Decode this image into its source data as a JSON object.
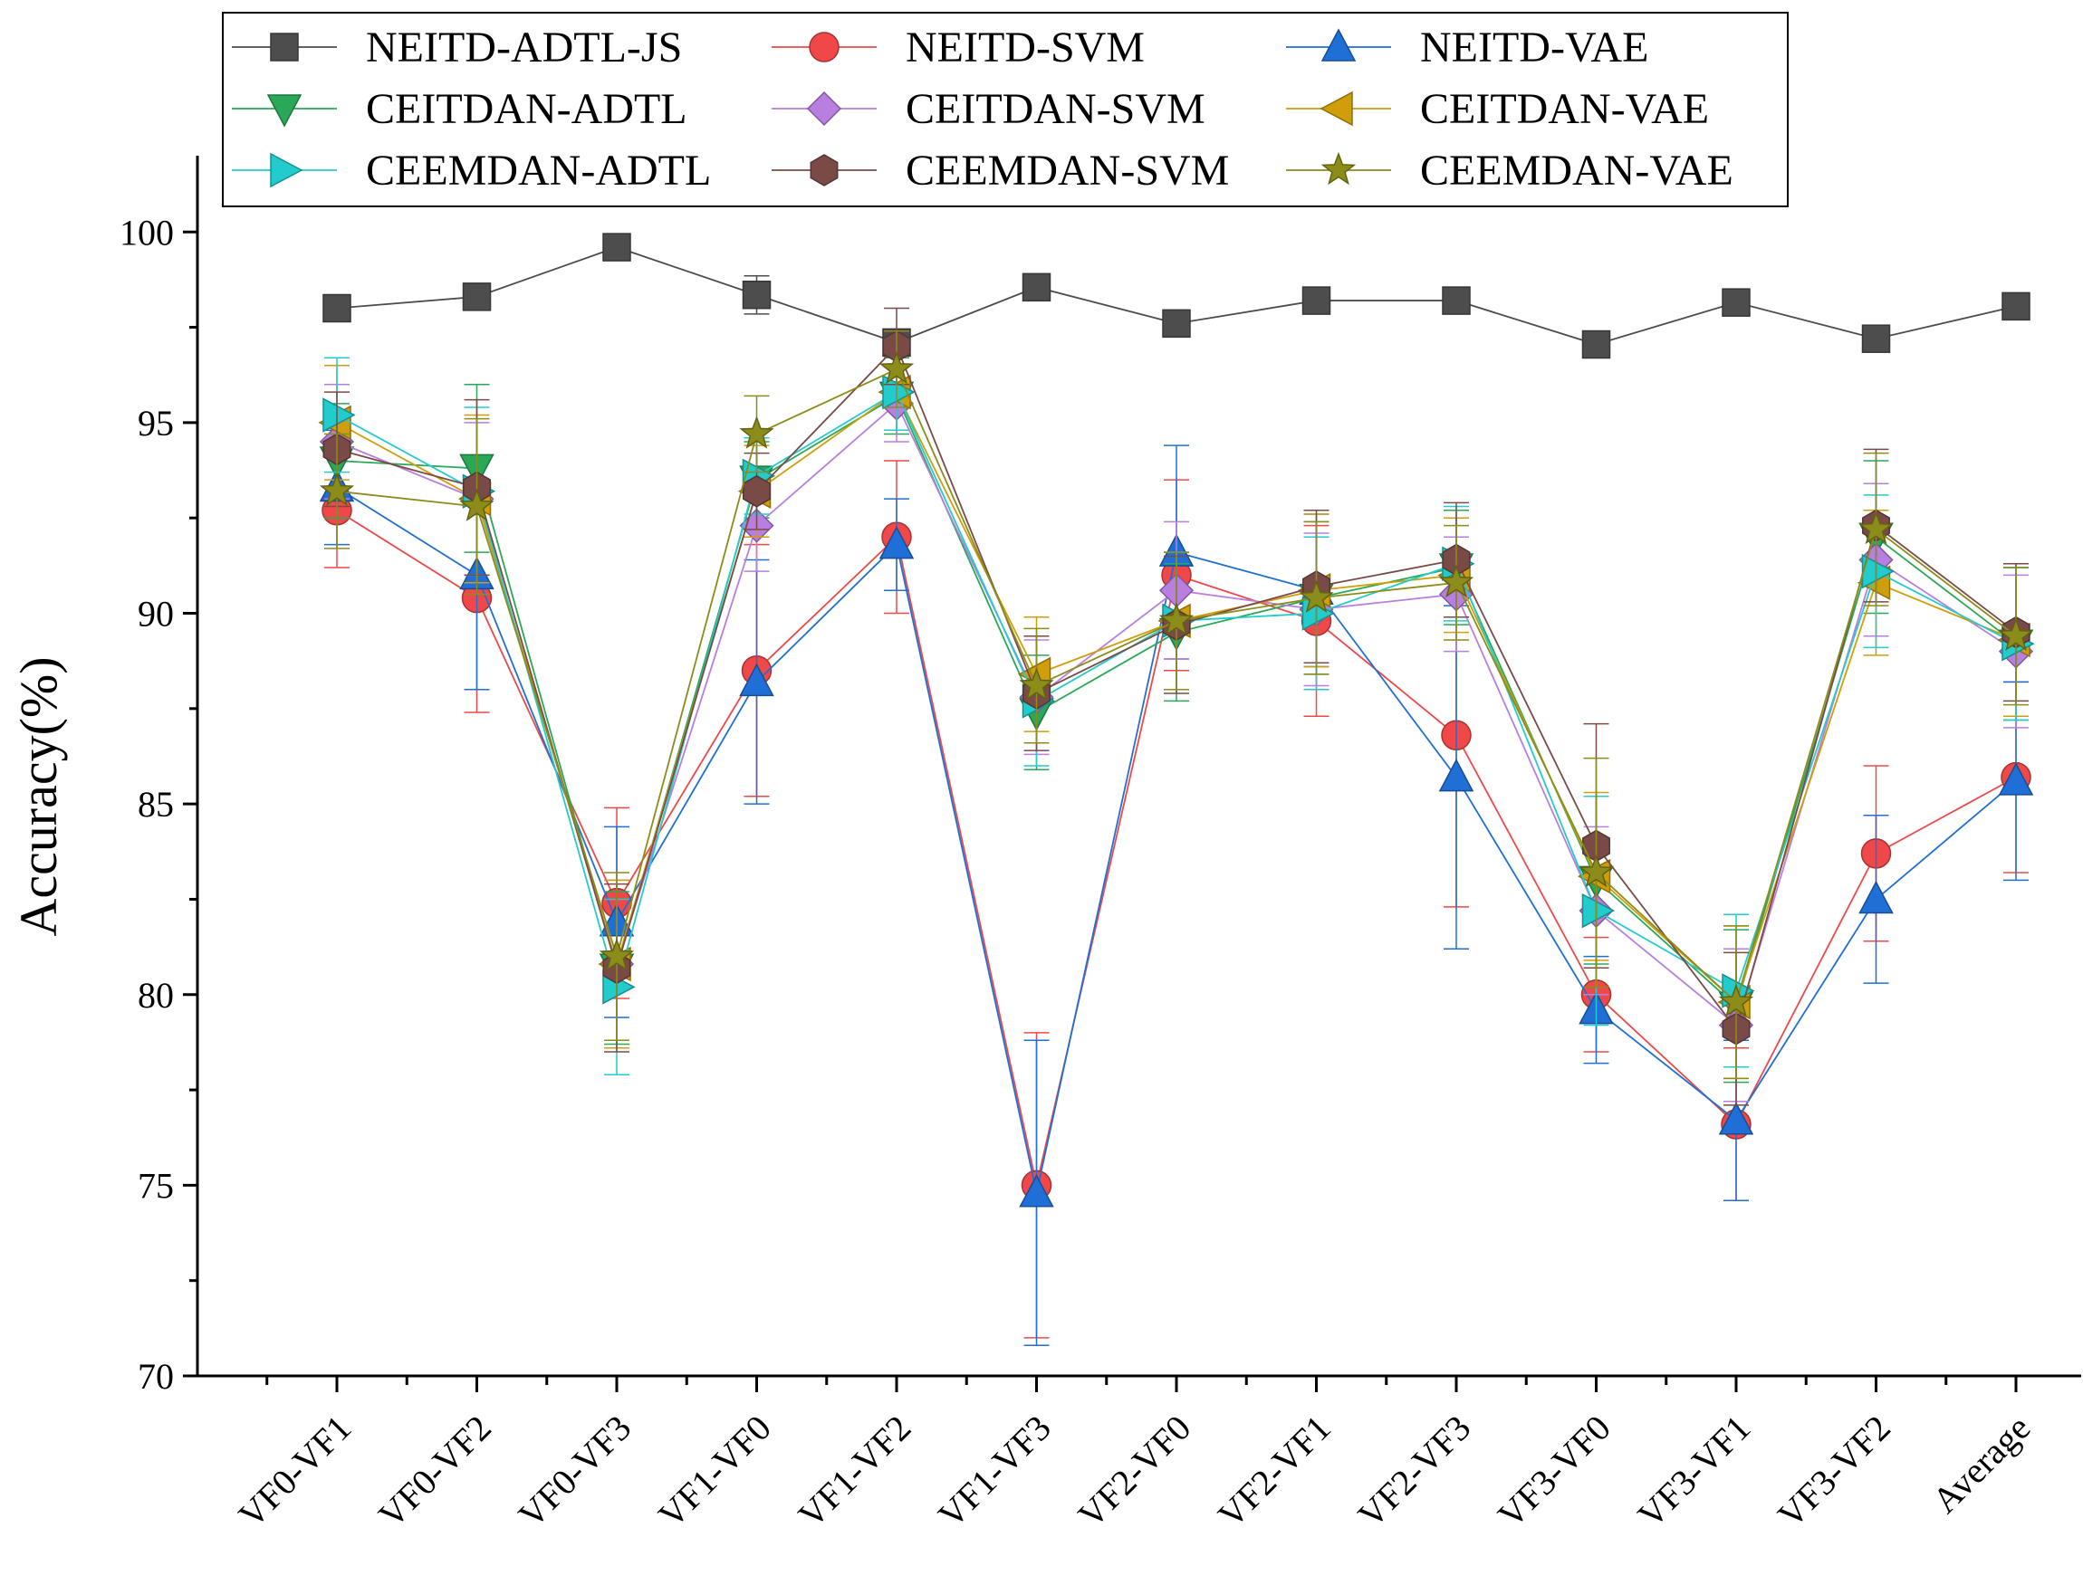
{
  "chart_data": {
    "type": "line",
    "title": "",
    "xlabel": "",
    "ylabel": "Accuracy(%)",
    "ylim": [
      70,
      102
    ],
    "yticks": [
      70,
      75,
      80,
      85,
      90,
      95,
      100
    ],
    "error_bars": true,
    "legend_position": "top",
    "categories": [
      "VF0-VF1",
      "VF0-VF2",
      "VF0-VF3",
      "VF1-VF0",
      "VF1-VF2",
      "VF1-VF3",
      "VF2-VF0",
      "VF2-VF1",
      "VF2-VF3",
      "VF3-VF0",
      "VF3-VF1",
      "VF3-VF2",
      "Average"
    ],
    "series": [
      {
        "name": "NEITD-ADTL-JS",
        "color": "#4d4d4d",
        "marker": "square",
        "values": [
          98.0,
          98.3,
          99.6,
          98.35,
          97.1,
          98.55,
          97.6,
          98.2,
          98.2,
          97.05,
          98.15,
          97.2,
          98.05
        ],
        "errors": [
          0.15,
          0.15,
          0.15,
          0.5,
          0.3,
          0.3,
          0.15,
          0.15,
          0.15,
          0.15,
          0.3,
          0.3,
          0.15
        ]
      },
      {
        "name": "NEITD-SVM",
        "color": "#f04848",
        "marker": "circle",
        "values": [
          92.7,
          90.4,
          82.4,
          88.5,
          92.0,
          75.0,
          91.0,
          89.8,
          86.8,
          80.0,
          76.6,
          83.7,
          85.7
        ],
        "errors": [
          1.5,
          3.0,
          2.5,
          3.3,
          2.0,
          4.0,
          2.5,
          2.5,
          4.5,
          1.5,
          2.0,
          2.3,
          2.5
        ]
      },
      {
        "name": "NEITD-VAE",
        "color": "#1f6fd6",
        "marker": "triangle-up",
        "values": [
          93.3,
          91.0,
          81.9,
          88.2,
          91.8,
          74.8,
          91.6,
          90.6,
          85.7,
          79.6,
          76.7,
          82.5,
          85.6
        ],
        "errors": [
          1.5,
          3.0,
          2.5,
          3.2,
          1.2,
          4.0,
          2.8,
          2.0,
          4.5,
          1.4,
          2.1,
          2.2,
          2.6
        ]
      },
      {
        "name": "CEITDAN-ADTL",
        "color": "#2aa858",
        "marker": "triangle-down",
        "values": [
          94.0,
          93.8,
          80.7,
          93.5,
          95.7,
          87.4,
          89.5,
          90.4,
          91.2,
          83.0,
          79.7,
          92.0,
          89.2
        ],
        "errors": [
          1.5,
          2.2,
          2.0,
          1.0,
          1.0,
          1.5,
          1.8,
          2.0,
          1.5,
          2.2,
          2.0,
          2.0,
          2.0
        ]
      },
      {
        "name": "CEITDAN-SVM",
        "color": "#b87ee0",
        "marker": "diamond",
        "values": [
          94.5,
          93.0,
          80.8,
          92.3,
          95.5,
          87.8,
          90.6,
          90.1,
          90.5,
          82.2,
          79.2,
          91.4,
          89.0
        ],
        "errors": [
          1.5,
          2.0,
          2.2,
          1.2,
          1.0,
          1.5,
          1.8,
          2.0,
          1.5,
          2.2,
          2.0,
          2.0,
          2.0
        ]
      },
      {
        "name": "CEITDAN-VAE",
        "color": "#cf9e0a",
        "marker": "triangle-left",
        "values": [
          95.0,
          93.0,
          80.8,
          93.2,
          95.8,
          88.4,
          89.8,
          90.6,
          91.0,
          83.1,
          79.8,
          90.8,
          89.3
        ],
        "errors": [
          1.5,
          2.2,
          2.2,
          1.2,
          1.0,
          1.5,
          1.8,
          2.0,
          1.5,
          2.2,
          2.0,
          1.9,
          2.0
        ]
      },
      {
        "name": "CEEMDAN-ADTL",
        "color": "#22cccc",
        "marker": "triangle-right",
        "values": [
          95.2,
          93.2,
          80.2,
          93.6,
          95.8,
          87.7,
          89.8,
          90.0,
          91.3,
          82.2,
          80.1,
          91.1,
          89.2
        ],
        "errors": [
          1.5,
          2.2,
          2.3,
          1.0,
          1.0,
          1.7,
          1.8,
          2.0,
          1.5,
          3.0,
          2.0,
          2.0,
          2.0
        ]
      },
      {
        "name": "CEEMDAN-SVM",
        "color": "#7a4b46",
        "marker": "hexagon",
        "values": [
          94.3,
          93.3,
          80.7,
          93.2,
          97.0,
          87.9,
          89.7,
          90.7,
          91.4,
          83.9,
          79.1,
          92.3,
          89.5
        ],
        "errors": [
          1.5,
          2.3,
          2.2,
          1.0,
          1.0,
          1.5,
          1.8,
          2.0,
          1.5,
          3.2,
          2.0,
          2.0,
          1.8
        ]
      },
      {
        "name": "CEEMDAN-VAE",
        "color": "#8c8c1a",
        "marker": "star",
        "values": [
          93.2,
          92.8,
          81.0,
          94.7,
          96.4,
          88.1,
          89.8,
          90.4,
          90.8,
          83.2,
          79.8,
          92.2,
          89.4
        ],
        "errors": [
          1.5,
          2.3,
          2.2,
          1.0,
          1.0,
          1.5,
          1.8,
          2.0,
          1.5,
          3.0,
          2.0,
          2.0,
          1.8
        ]
      }
    ]
  }
}
